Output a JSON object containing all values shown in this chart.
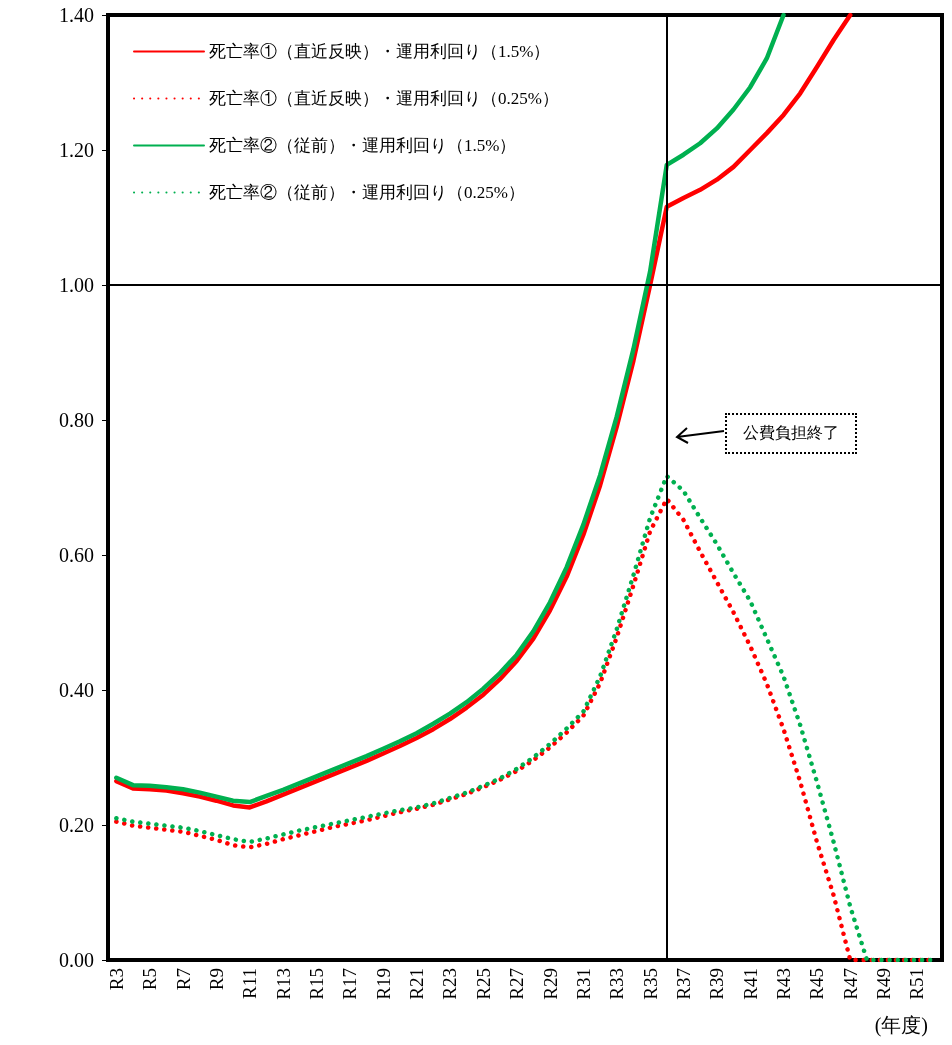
{
  "chart_data": {
    "type": "line",
    "xlabel": "(年度)",
    "categories": [
      "R3",
      null,
      "R5",
      null,
      "R7",
      null,
      "R9",
      null,
      "R11",
      null,
      "R13",
      null,
      "R15",
      null,
      "R17",
      null,
      "R19",
      null,
      "R21",
      null,
      "R23",
      null,
      "R25",
      null,
      "R27",
      null,
      "R29",
      null,
      "R31",
      null,
      "R33",
      null,
      "R35",
      null,
      "R37",
      null,
      "R39",
      null,
      "R41",
      null,
      "R43",
      null,
      "R45",
      null,
      "R47",
      null,
      "R49",
      null,
      "R51",
      null
    ],
    "ylim": [
      0,
      1.4
    ],
    "yticks": [
      {
        "value": 0,
        "label": "0.00"
      },
      {
        "value": 0.2,
        "label": "0.20"
      },
      {
        "value": 0.4,
        "label": "0.40"
      },
      {
        "value": 0.6,
        "label": "0.60"
      },
      {
        "value": 0.8,
        "label": "0.80"
      },
      {
        "value": 1.0,
        "label": "1.00"
      },
      {
        "value": 1.2,
        "label": "1.20"
      },
      {
        "value": 1.4,
        "label": "1.40"
      }
    ],
    "grid": false,
    "legend": "top left",
    "marker": "none",
    "series": [
      {
        "name": "死亡率①（直近反映）・運用利回り（1.5%）",
        "color": "#ff0000",
        "line_style": "solid",
        "values": [
          0.265,
          0.254,
          0.253,
          0.251,
          0.247,
          0.242,
          0.236,
          0.229,
          0.226,
          0.235,
          0.245,
          0.255,
          0.265,
          0.275,
          0.285,
          0.295,
          0.306,
          0.317,
          0.329,
          0.342,
          0.357,
          0.374,
          0.393,
          0.416,
          0.443,
          0.476,
          0.518,
          0.568,
          0.63,
          0.703,
          0.79,
          0.888,
          1.0,
          1.116,
          1.129,
          1.141,
          1.156,
          1.175,
          1.2,
          1.225,
          1.252,
          1.284,
          1.323,
          1.363,
          1.4,
          null,
          null,
          null,
          null,
          null
        ]
      },
      {
        "name": "死亡率①（直近反映）・運用利回り（0.25%）",
        "color": "#ff0000",
        "line_style": "dotted",
        "values": [
          0.205,
          0.199,
          0.196,
          0.193,
          0.19,
          0.184,
          0.178,
          0.17,
          0.167,
          0.172,
          0.179,
          0.185,
          0.191,
          0.197,
          0.202,
          0.207,
          0.213,
          0.219,
          0.224,
          0.23,
          0.238,
          0.246,
          0.256,
          0.267,
          0.28,
          0.296,
          0.315,
          0.337,
          0.362,
          0.41,
          0.478,
          0.555,
          0.635,
          0.683,
          0.652,
          0.605,
          0.56,
          0.515,
          0.465,
          0.409,
          0.342,
          0.264,
          0.175,
          0.096,
          0,
          0,
          0,
          0,
          0,
          0
        ]
      },
      {
        "name": "死亡率②（従前）・運用利回り（1.5%）",
        "color": "#00b050",
        "line_style": "solid",
        "values": [
          0.27,
          0.259,
          0.258,
          0.256,
          0.253,
          0.248,
          0.242,
          0.236,
          0.234,
          0.243,
          0.252,
          0.262,
          0.272,
          0.282,
          0.292,
          0.302,
          0.313,
          0.324,
          0.336,
          0.35,
          0.365,
          0.382,
          0.402,
          0.425,
          0.452,
          0.487,
          0.53,
          0.582,
          0.645,
          0.718,
          0.805,
          0.905,
          1.02,
          1.178,
          1.193,
          1.21,
          1.232,
          1.26,
          1.293,
          1.336,
          1.4,
          null,
          null,
          null,
          null,
          null,
          null,
          null,
          null,
          null
        ]
      },
      {
        "name": "死亡率②（従前）・運用利回り（0.25%）",
        "color": "#00b050",
        "line_style": "dotted",
        "values": [
          0.21,
          0.205,
          0.202,
          0.199,
          0.196,
          0.191,
          0.185,
          0.179,
          0.175,
          0.18,
          0.186,
          0.192,
          0.197,
          0.202,
          0.207,
          0.212,
          0.217,
          0.222,
          0.226,
          0.232,
          0.24,
          0.248,
          0.258,
          0.269,
          0.283,
          0.3,
          0.32,
          0.343,
          0.368,
          0.42,
          0.49,
          0.57,
          0.655,
          0.717,
          0.695,
          0.655,
          0.616,
          0.573,
          0.532,
          0.476,
          0.42,
          0.348,
          0.264,
          0.175,
          0.079,
          0,
          0,
          0,
          0,
          0
        ]
      }
    ],
    "ref_lines": [
      {
        "axis": "y",
        "value": 1.0,
        "color": "#000000"
      }
    ],
    "annotations": [
      "公費負担終了"
    ]
  }
}
